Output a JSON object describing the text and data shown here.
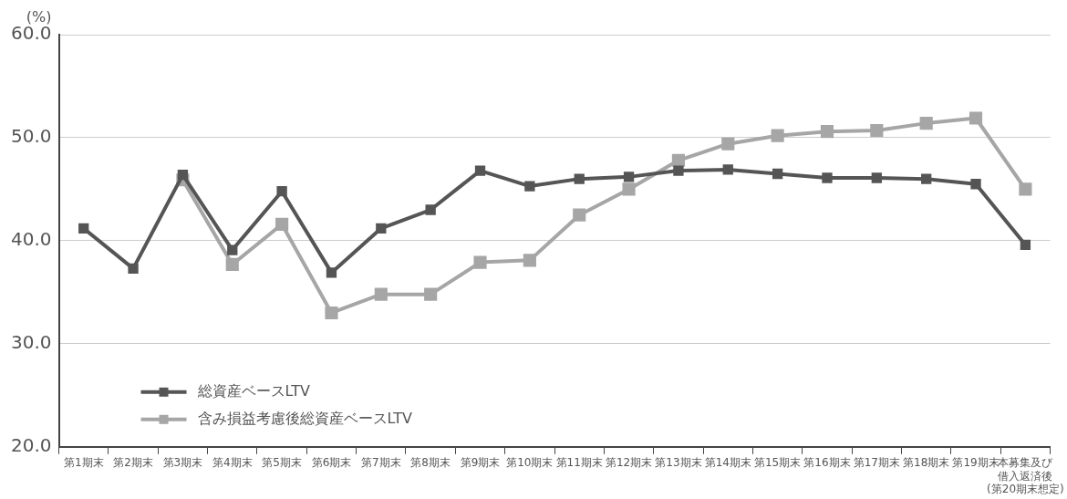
{
  "chart_data": {
    "type": "line",
    "ylabel": "(%)",
    "categories": [
      "第1期末",
      "第2期末",
      "第3期末",
      "第4期末",
      "第5期末",
      "第6期末",
      "第7期末",
      "第8期末",
      "第9期末",
      "第10期末",
      "第11期末",
      "第12期末",
      "第13期末",
      "第14期末",
      "第15期末",
      "第16期末",
      "第17期末",
      "第18期末",
      "第19期末",
      "本募集及び借入返済後(第20期末想定)"
    ],
    "series": [
      {
        "name": "総資産ベースLTV",
        "color": "#555555",
        "values": [
          41.2,
          37.3,
          46.4,
          39.1,
          44.8,
          36.9,
          41.2,
          43.0,
          46.8,
          45.3,
          46.0,
          46.2,
          46.8,
          46.9,
          46.5,
          46.1,
          46.1,
          46.0,
          45.5,
          39.6
        ]
      },
      {
        "name": "含み損益考慮後総資産ベースLTV",
        "color": "#a6a6a6",
        "values": [
          null,
          null,
          45.9,
          37.7,
          41.6,
          33.0,
          34.8,
          34.8,
          37.9,
          38.1,
          42.5,
          45.0,
          47.8,
          49.4,
          50.2,
          50.6,
          50.7,
          51.4,
          51.9,
          45.0
        ]
      }
    ],
    "ylim": [
      20,
      60
    ],
    "yticks": [
      {
        "value": 20,
        "label": "20.0"
      },
      {
        "value": 30,
        "label": "30.0"
      },
      {
        "value": 40,
        "label": "40.0"
      },
      {
        "value": 50,
        "label": "50.0"
      },
      {
        "value": 60,
        "label": "60.0"
      }
    ],
    "grid": "y",
    "legend": "bottom left",
    "marker": "square",
    "line_style": "solid"
  }
}
